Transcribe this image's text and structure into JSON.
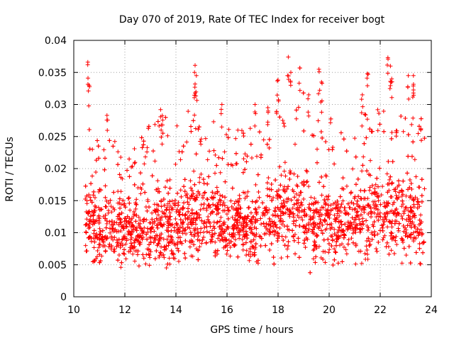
{
  "chart_data": {
    "type": "scatter",
    "title": "Day 070 of 2019, Rate Of TEC Index for receiver bogt",
    "xlabel": "GPS time / hours",
    "ylabel": "ROTI / TECUs",
    "xlim": [
      10,
      24
    ],
    "ylim": [
      0,
      0.04
    ],
    "xticks": [
      10,
      12,
      14,
      16,
      18,
      20,
      22,
      24
    ],
    "xtick_labels": [
      "10",
      "12",
      "14",
      "16",
      "18",
      "20",
      "22",
      "24"
    ],
    "yticks": [
      0,
      0.005,
      0.01,
      0.015,
      0.02,
      0.025,
      0.03,
      0.035,
      0.04
    ],
    "ytick_labels": [
      "0",
      "0.005",
      "0.01",
      "0.015",
      "0.02",
      "0.025",
      "0.03",
      "0.035",
      "0.04"
    ],
    "grid": true,
    "marker": "+",
    "color": "#ff0000",
    "x_range": [
      10.45,
      23.75
    ],
    "envelope": [
      {
        "x": 10.5,
        "low": 0.005,
        "median": 0.012,
        "high": 0.022
      },
      {
        "x": 11.0,
        "low": 0.005,
        "median": 0.011,
        "high": 0.021
      },
      {
        "x": 11.5,
        "low": 0.005,
        "median": 0.011,
        "high": 0.019
      },
      {
        "x": 12.0,
        "low": 0.004,
        "median": 0.01,
        "high": 0.018
      },
      {
        "x": 12.5,
        "low": 0.005,
        "median": 0.01,
        "high": 0.019
      },
      {
        "x": 13.0,
        "low": 0.005,
        "median": 0.011,
        "high": 0.022
      },
      {
        "x": 13.5,
        "low": 0.005,
        "median": 0.011,
        "high": 0.024
      },
      {
        "x": 14.0,
        "low": 0.005,
        "median": 0.011,
        "high": 0.022
      },
      {
        "x": 14.5,
        "low": 0.006,
        "median": 0.013,
        "high": 0.024
      },
      {
        "x": 15.0,
        "low": 0.006,
        "median": 0.013,
        "high": 0.024
      },
      {
        "x": 15.5,
        "low": 0.006,
        "median": 0.012,
        "high": 0.022
      },
      {
        "x": 16.0,
        "low": 0.005,
        "median": 0.011,
        "high": 0.02
      },
      {
        "x": 16.5,
        "low": 0.005,
        "median": 0.011,
        "high": 0.021
      },
      {
        "x": 17.0,
        "low": 0.005,
        "median": 0.011,
        "high": 0.021
      },
      {
        "x": 17.5,
        "low": 0.005,
        "median": 0.012,
        "high": 0.022
      },
      {
        "x": 18.0,
        "low": 0.004,
        "median": 0.013,
        "high": 0.026
      },
      {
        "x": 18.5,
        "low": 0.005,
        "median": 0.014,
        "high": 0.027
      },
      {
        "x": 19.0,
        "low": 0.005,
        "median": 0.013,
        "high": 0.026
      },
      {
        "x": 19.5,
        "low": 0.005,
        "median": 0.012,
        "high": 0.025
      },
      {
        "x": 20.0,
        "low": 0.005,
        "median": 0.011,
        "high": 0.022
      },
      {
        "x": 20.5,
        "low": 0.005,
        "median": 0.011,
        "high": 0.021
      },
      {
        "x": 21.0,
        "low": 0.005,
        "median": 0.012,
        "high": 0.022
      },
      {
        "x": 21.5,
        "low": 0.005,
        "median": 0.013,
        "high": 0.024
      },
      {
        "x": 22.0,
        "low": 0.005,
        "median": 0.013,
        "high": 0.025
      },
      {
        "x": 22.5,
        "low": 0.005,
        "median": 0.013,
        "high": 0.025
      },
      {
        "x": 23.0,
        "low": 0.005,
        "median": 0.013,
        "high": 0.024
      },
      {
        "x": 23.5,
        "low": 0.005,
        "median": 0.013,
        "high": 0.024
      }
    ],
    "peaks": [
      {
        "x": 10.55,
        "y": 0.0366
      },
      {
        "x": 10.6,
        "y": 0.033
      },
      {
        "x": 11.3,
        "y": 0.0283
      },
      {
        "x": 13.4,
        "y": 0.0292
      },
      {
        "x": 14.75,
        "y": 0.0361
      },
      {
        "x": 14.8,
        "y": 0.0345
      },
      {
        "x": 14.75,
        "y": 0.0318
      },
      {
        "x": 15.8,
        "y": 0.03
      },
      {
        "x": 17.1,
        "y": 0.03
      },
      {
        "x": 17.6,
        "y": 0.0295
      },
      {
        "x": 18.0,
        "y": 0.0338
      },
      {
        "x": 18.4,
        "y": 0.0374
      },
      {
        "x": 18.5,
        "y": 0.035
      },
      {
        "x": 18.85,
        "y": 0.0357
      },
      {
        "x": 19.2,
        "y": 0.0315
      },
      {
        "x": 19.6,
        "y": 0.0355
      },
      {
        "x": 19.7,
        "y": 0.0335
      },
      {
        "x": 21.5,
        "y": 0.0348
      },
      {
        "x": 21.3,
        "y": 0.0315
      },
      {
        "x": 22.3,
        "y": 0.0373
      },
      {
        "x": 22.4,
        "y": 0.036
      },
      {
        "x": 22.45,
        "y": 0.034
      },
      {
        "x": 23.1,
        "y": 0.0345
      },
      {
        "x": 23.3,
        "y": 0.0345
      },
      {
        "x": 23.3,
        "y": 0.0318
      }
    ]
  }
}
